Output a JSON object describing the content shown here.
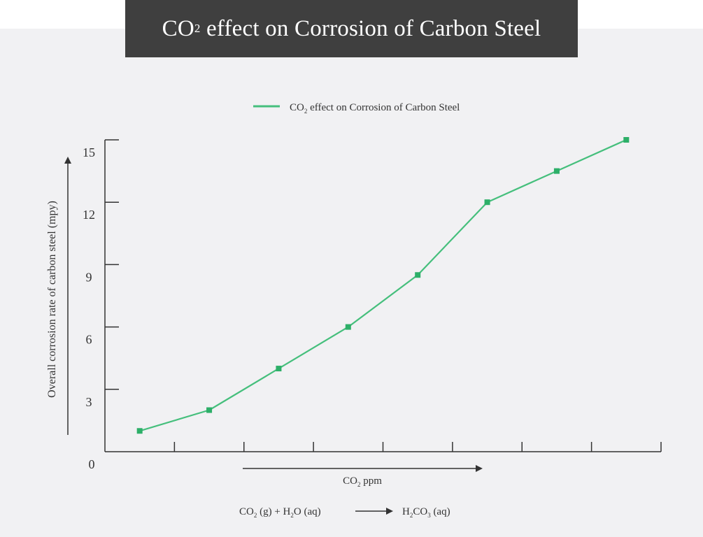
{
  "colors": {
    "page_background": "#f1f1f3",
    "title_background": "#3f3f3f",
    "title_text": "#ffffff",
    "series_line": "#45bf7c",
    "series_marker": "#2daf68",
    "axis": "#333333"
  },
  "header": {
    "title_prefix": "CO",
    "title_sub": "2",
    "title_suffix": " effect on Corrosion of Carbon Steel"
  },
  "chart_data": {
    "type": "line",
    "title": "CO₂ effect on Corrosion of Carbon Steel",
    "legend_position": "top-center",
    "legend": {
      "prefix": "CO",
      "sub": "2",
      "suffix": " effect on Corrosion of Carbon Steel"
    },
    "xlabel": {
      "prefix": "CO",
      "sub": "2",
      "suffix": " ppm"
    },
    "ylabel": "Overall corrosion rate of carbon steel (mpy)",
    "x_tick_labels_shown": false,
    "ylim": [
      0,
      15
    ],
    "y_ticks": [
      0,
      3,
      6,
      9,
      12,
      15
    ],
    "y_tick_labels": [
      "0",
      "3",
      "6",
      "9",
      "12",
      "15"
    ],
    "grid": false,
    "series": [
      {
        "name": "CO₂ effect on Corrosion of Carbon Steel",
        "x": [
          1,
          2,
          3,
          4,
          5,
          6,
          7,
          8
        ],
        "values": [
          1.0,
          2.0,
          4.0,
          6.0,
          8.5,
          12.0,
          13.5,
          15.0
        ]
      }
    ]
  },
  "equation": {
    "parts": [
      {
        "t": "CO"
      },
      {
        "t": "2",
        "sub": true
      },
      {
        "t": " (g) + H"
      },
      {
        "t": "2",
        "sub": true
      },
      {
        "t": "O (aq)"
      }
    ],
    "product_parts": [
      {
        "t": "H"
      },
      {
        "t": "2",
        "sub": true
      },
      {
        "t": "CO"
      },
      {
        "t": "3",
        "sub": true
      },
      {
        "t": " (aq)"
      }
    ]
  }
}
